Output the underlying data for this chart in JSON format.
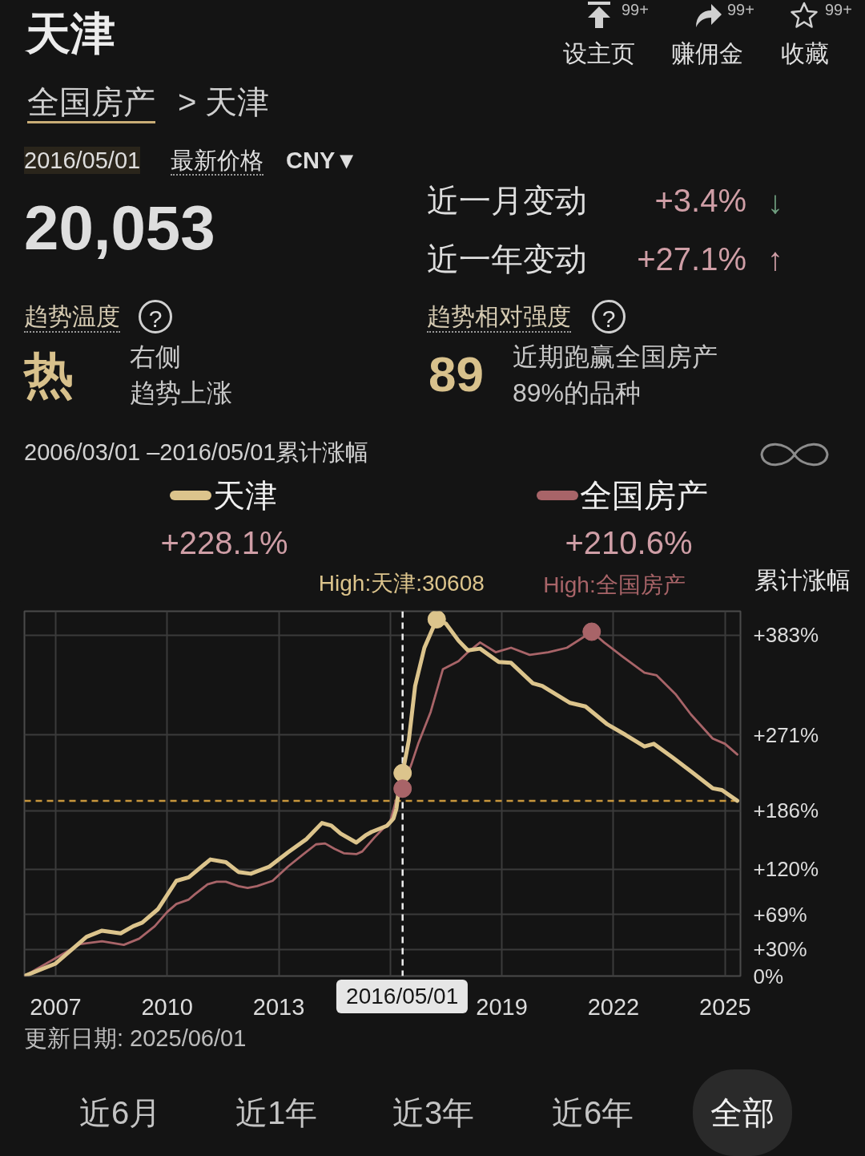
{
  "chart_data": {
    "type": "line",
    "title": "天津",
    "subtitle": "2006/03/01 –2016/05/01累计涨幅",
    "ylabel": "累计涨幅",
    "xlim": [
      "2006-03-01",
      "2025-06-01"
    ],
    "xticks": [
      "2007",
      "2010",
      "2013",
      {
        "value": "2016",
        "label": null
      },
      "2019",
      "2022",
      "2025"
    ],
    "ylim": [
      0,
      410
    ],
    "yticks": [
      {
        "value": 0,
        "label": "0%"
      },
      {
        "value": 30,
        "label": "+30%"
      },
      {
        "value": 69,
        "label": "+69%"
      },
      {
        "value": 120,
        "label": "+120%"
      },
      {
        "value": 186,
        "label": "+186%"
      },
      {
        "value": 271,
        "label": "+271%"
      },
      {
        "value": 383,
        "label": "+383%"
      }
    ],
    "grid": true,
    "legend": "top",
    "series": [
      {
        "name": "天津",
        "color": "#dcc48c",
        "x": [
          "2006-03",
          "2007-01",
          "2007-11",
          "2008-04",
          "2008-10",
          "2009-02",
          "2009-05",
          "2009-10",
          "2010-04",
          "2010-08",
          "2011-03",
          "2011-08",
          "2011-12",
          "2012-04",
          "2012-10",
          "2013-04",
          "2013-10",
          "2014-03",
          "2014-06",
          "2014-09",
          "2015-02",
          "2015-05",
          "2015-07",
          "2015-12",
          "2016-02",
          "2016-03",
          "2016-04",
          "2016-05",
          "2016-07",
          "2016-09",
          "2016-12",
          "2017-04",
          "2017-07",
          "2017-11",
          "2018-02",
          "2018-06",
          "2018-12",
          "2019-04",
          "2019-11",
          "2020-02",
          "2020-11",
          "2021-04",
          "2021-11",
          "2022-05",
          "2022-11",
          "2023-02",
          "2023-08",
          "2024-02",
          "2024-09",
          "2024-12",
          "2025-05"
        ],
        "values": [
          0,
          14,
          44,
          51,
          48,
          56,
          60,
          75,
          107,
          111,
          131,
          128,
          117,
          115,
          123,
          139,
          154,
          172,
          169,
          160,
          150,
          158,
          162,
          169,
          177,
          188,
          217,
          228.1,
          265,
          326,
          369,
          401,
          396,
          377,
          366,
          368,
          353,
          352,
          329,
          326,
          307,
          303,
          283,
          271,
          258,
          261,
          246,
          230,
          211,
          209,
          197
        ]
      },
      {
        "name": "全国房产",
        "color": "#a86468",
        "x": [
          "2006-03",
          "2006-12",
          "2007-09",
          "2008-04",
          "2008-11",
          "2009-04",
          "2009-09",
          "2010-01",
          "2010-04",
          "2010-08",
          "2010-10",
          "2011-02",
          "2011-05",
          "2011-08",
          "2011-12",
          "2012-03",
          "2012-06",
          "2012-11",
          "2013-04",
          "2013-09",
          "2014-01",
          "2014-04",
          "2014-07",
          "2014-10",
          "2015-02",
          "2015-04",
          "2015-08",
          "2016-01",
          "2016-03",
          "2016-05",
          "2016-08",
          "2016-10",
          "2017-02",
          "2017-06",
          "2017-11",
          "2018-02",
          "2018-06",
          "2018-11",
          "2019-04",
          "2019-10",
          "2020-04",
          "2020-10",
          "2021-02",
          "2021-06",
          "2021-10",
          "2022-04",
          "2022-11",
          "2023-03",
          "2023-09",
          "2024-02",
          "2024-09",
          "2025-01",
          "2025-05"
        ],
        "values": [
          0,
          18,
          36,
          39,
          35,
          42,
          56,
          72,
          81,
          86,
          92,
          103,
          106,
          106,
          101,
          99,
          101,
          107,
          123,
          137,
          148,
          149,
          143,
          138,
          137,
          140,
          156,
          174,
          199,
          210.6,
          240,
          261,
          297,
          345,
          354,
          364,
          375,
          364,
          369,
          361,
          364,
          369,
          378,
          387,
          375,
          359,
          341,
          338,
          317,
          294,
          267,
          261,
          249
        ]
      },
      {
        "type": "scatter",
        "marker": "circle",
        "color": "#dcc48c",
        "x": [
          "2016-05",
          "2017-04"
        ],
        "values": [
          228.1,
          401
        ]
      },
      {
        "type": "scatter",
        "marker": "circle",
        "color": "#a86468",
        "x": [
          "2016-05",
          "2021-06"
        ],
        "values": [
          210.6,
          387
        ]
      }
    ],
    "ref_lines": [
      {
        "axis": "x",
        "value": "2016-05-01",
        "label": "2016/05/01",
        "color": "#f0f0f0",
        "line_style": "dashed"
      },
      {
        "axis": "y",
        "value": 197,
        "color": "#c8963c",
        "line_style": "dashed"
      }
    ],
    "annotations": [
      "99+",
      "99+",
      "99+",
      "设主页",
      "赚佣金",
      "收藏",
      "全国房产",
      "> 天津",
      "2016/05/01",
      "最新价格",
      "CNY▼",
      "20,053",
      "近一月变动",
      "+3.4%",
      "↓",
      "近一年变动",
      "+27.1%",
      "↑",
      "趋势温度",
      "?",
      "热",
      "右侧",
      "趋势上涨",
      "趋势相对强度",
      "?",
      "89",
      "近期跑赢全国房产",
      "89%的品种",
      "+228.1%",
      "+210.6%",
      "更新日期: 2025/06/01",
      "近6月",
      "近1年",
      "近3年",
      "近6年",
      "全部",
      {
        "text": "High:天津:30608",
        "x": "2017-04",
        "y": 401
      },
      {
        "text": "High:全国房产",
        "x": "2021-06",
        "y": 387
      }
    ]
  }
}
